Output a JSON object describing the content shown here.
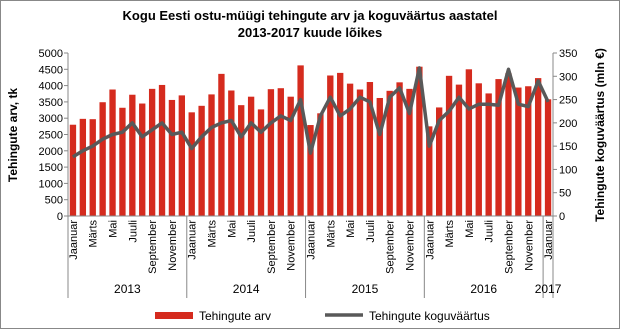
{
  "chart_data": {
    "type": "bar-line",
    "title": "Kogu Eesti ostu-müügi tehingute arv ja koguväärtus aastatel",
    "subtitle": "2013-2017 kuude lõikes",
    "y_label": "Tehingute arv, tk",
    "y2_label": "Tehingute koguväärtus (mln €)",
    "categories": [
      "Jaanuar",
      null,
      "Märts",
      null,
      "Mai",
      null,
      "Juuli",
      null,
      "September",
      null,
      "November",
      null,
      "Jaanuar",
      null,
      "Märts",
      null,
      "Mai",
      null,
      "Juuli",
      null,
      "September",
      null,
      "November",
      null,
      "Jaanuar",
      null,
      "Märts",
      null,
      "Mai",
      null,
      "Juuli",
      null,
      "September",
      null,
      "November",
      null,
      "Jaanuar",
      null,
      "Märts",
      null,
      "Mai",
      null,
      "Juuli",
      null,
      "September",
      null,
      "November",
      null,
      "Jaanuar"
    ],
    "groups": [
      "2013",
      "2014",
      "2015",
      "2016",
      "2017"
    ],
    "series": [
      {
        "name": "Tehingute arv",
        "color": "#d52b1e",
        "type": "bar",
        "values": [
          2800,
          2980,
          2970,
          3490,
          3880,
          3320,
          3720,
          3450,
          3900,
          4020,
          3560,
          3700,
          3180,
          3380,
          3730,
          4360,
          3850,
          3400,
          3660,
          3270,
          3890,
          3920,
          3660,
          4620,
          2790,
          3150,
          4310,
          4390,
          4060,
          3880,
          4110,
          3620,
          3840,
          4100,
          3900,
          4580,
          2750,
          3330,
          4300,
          4030,
          4500,
          4070,
          3760,
          4200,
          4380,
          3940,
          3980,
          4230,
          3580
        ]
      },
      {
        "name": "Tehingute koguväärtus",
        "color": "#595959",
        "type": "line",
        "axis": "y2",
        "values": [
          127,
          140,
          150,
          165,
          175,
          180,
          200,
          170,
          185,
          200,
          175,
          180,
          145,
          170,
          190,
          200,
          205,
          170,
          200,
          180,
          200,
          215,
          205,
          250,
          135,
          215,
          255,
          215,
          230,
          255,
          245,
          175,
          255,
          275,
          220,
          318,
          150,
          205,
          225,
          255,
          230,
          240,
          240,
          238,
          315,
          240,
          235,
          290,
          245
        ]
      }
    ],
    "ylim": [
      0,
      5000
    ],
    "yticks": [
      0,
      500,
      1000,
      1500,
      2000,
      2500,
      3000,
      3500,
      4000,
      4500,
      5000
    ],
    "y2lim": [
      0,
      350
    ],
    "y2ticks": [
      0,
      50,
      100,
      150,
      200,
      250,
      300,
      350
    ],
    "legend": "bottom"
  }
}
